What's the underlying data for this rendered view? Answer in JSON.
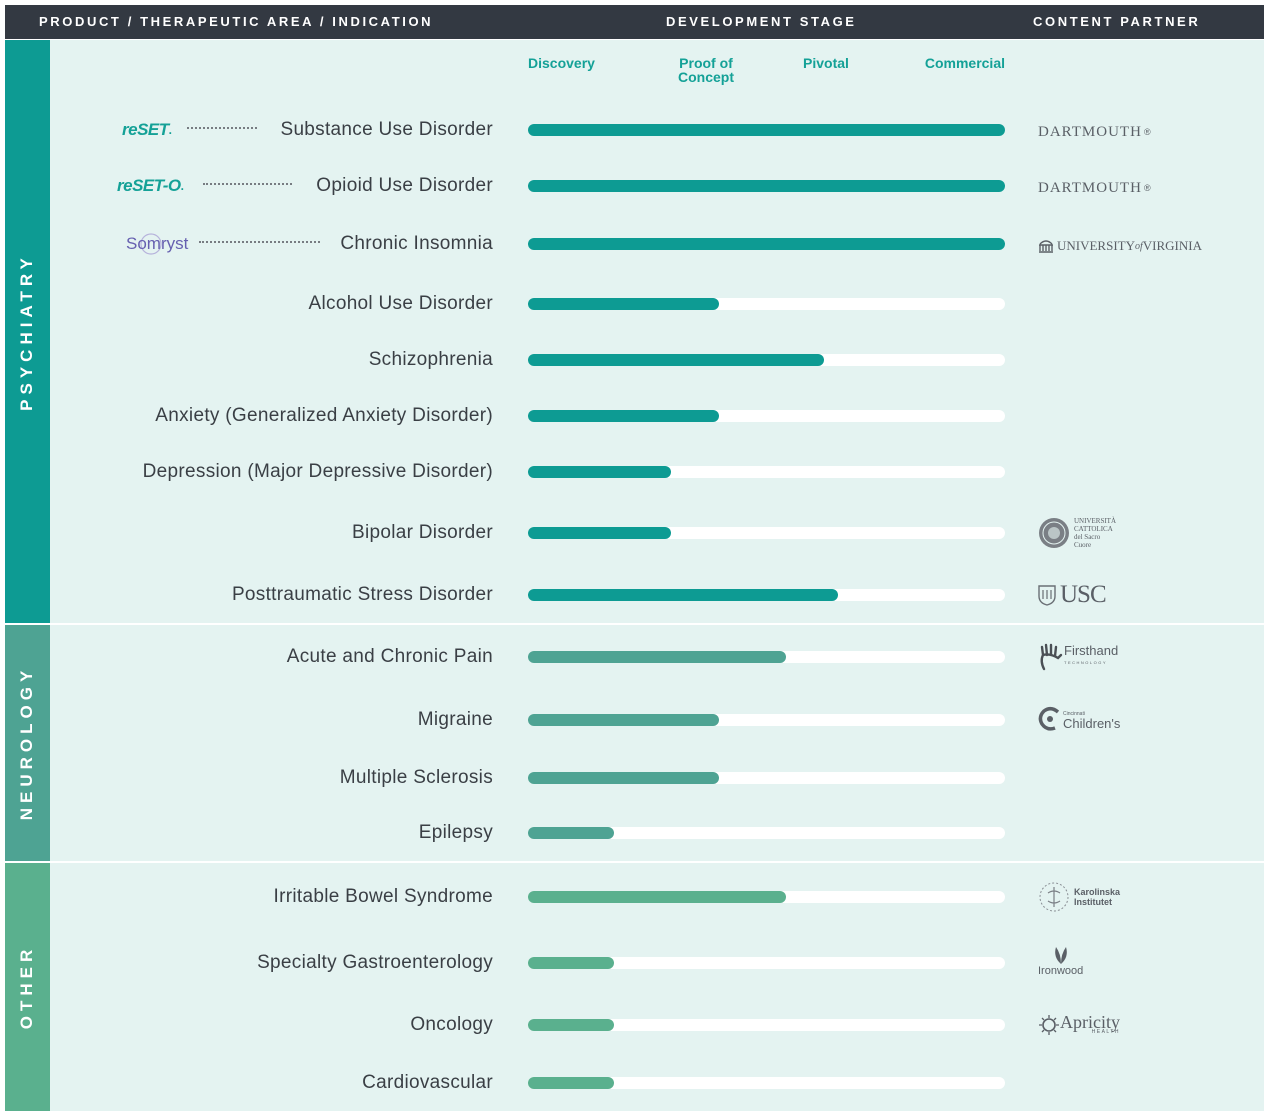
{
  "header": {
    "col1": "PRODUCT / THERAPEUTIC AREA / INDICATION",
    "col2": "DEVELOPMENT STAGE",
    "col3": "CONTENT PARTNER"
  },
  "colors": {
    "header_bg": "#333942",
    "panel_bg": "#e4f3f1",
    "psychiatry": "#0d9b93",
    "neurology": "#4ea393",
    "other": "#5ab08e",
    "stage_text": "#14a197",
    "somryst": "#6660b0"
  },
  "groups": [
    {
      "label": "PSYCHIATRY"
    },
    {
      "label": "NEUROLOGY"
    },
    {
      "label": "OTHER"
    }
  ],
  "products": [
    {
      "name": "reSET",
      "mark": "."
    },
    {
      "name": "reSET-O",
      "mark": "."
    },
    {
      "name": "Somryst",
      "mark": ""
    }
  ],
  "partners": {
    "dartmouth": "DARTMOUTH",
    "uva_a": "UNIVERSITY",
    "uva_of": "of",
    "uva_b": "VIRGINIA",
    "cattolica": "UNIVERSITÀ CATTOLICA del Sacro Cuore",
    "usc": "USC",
    "firsthand": "Firsthand",
    "firsthand_sub": "TECHNOLOGY",
    "cincinnati_small": "Cincinnati",
    "cincinnati": "Children's",
    "karolinska_1": "Karolinska",
    "karolinska_2": "Institutet",
    "ironwood": "Ironwood",
    "apricity": "Apricity",
    "apricity_sub": "HEALTH"
  },
  "chart_data": {
    "type": "bar",
    "orientation": "horizontal",
    "stages": [
      "Discovery",
      "Proof of Concept",
      "Pivotal",
      "Commercial"
    ],
    "categories": [
      "Substance Use Disorder",
      "Opioid Use Disorder",
      "Chronic Insomnia",
      "Alcohol Use Disorder",
      "Schizophrenia",
      "Anxiety (Generalized Anxiety Disorder)",
      "Depression (Major Depressive Disorder)",
      "Bipolar Disorder",
      "Posttraumatic Stress Disorder",
      "Acute and Chronic Pain",
      "Migraine",
      "Multiple Sclerosis",
      "Epilepsy",
      "Irritable Bowel Syndrome",
      "Specialty Gastroenterology",
      "Oncology",
      "Cardiovascular"
    ],
    "values": [
      1.0,
      1.0,
      1.0,
      0.4,
      0.62,
      0.4,
      0.3,
      0.3,
      0.65,
      0.54,
      0.4,
      0.4,
      0.18,
      0.54,
      0.18,
      0.18,
      0.18
    ],
    "areas": [
      "PSYCHIATRY",
      "PSYCHIATRY",
      "PSYCHIATRY",
      "PSYCHIATRY",
      "PSYCHIATRY",
      "PSYCHIATRY",
      "PSYCHIATRY",
      "PSYCHIATRY",
      "PSYCHIATRY",
      "NEUROLOGY",
      "NEUROLOGY",
      "NEUROLOGY",
      "NEUROLOGY",
      "OTHER",
      "OTHER",
      "OTHER",
      "OTHER"
    ],
    "xlim": [
      0,
      1
    ]
  }
}
